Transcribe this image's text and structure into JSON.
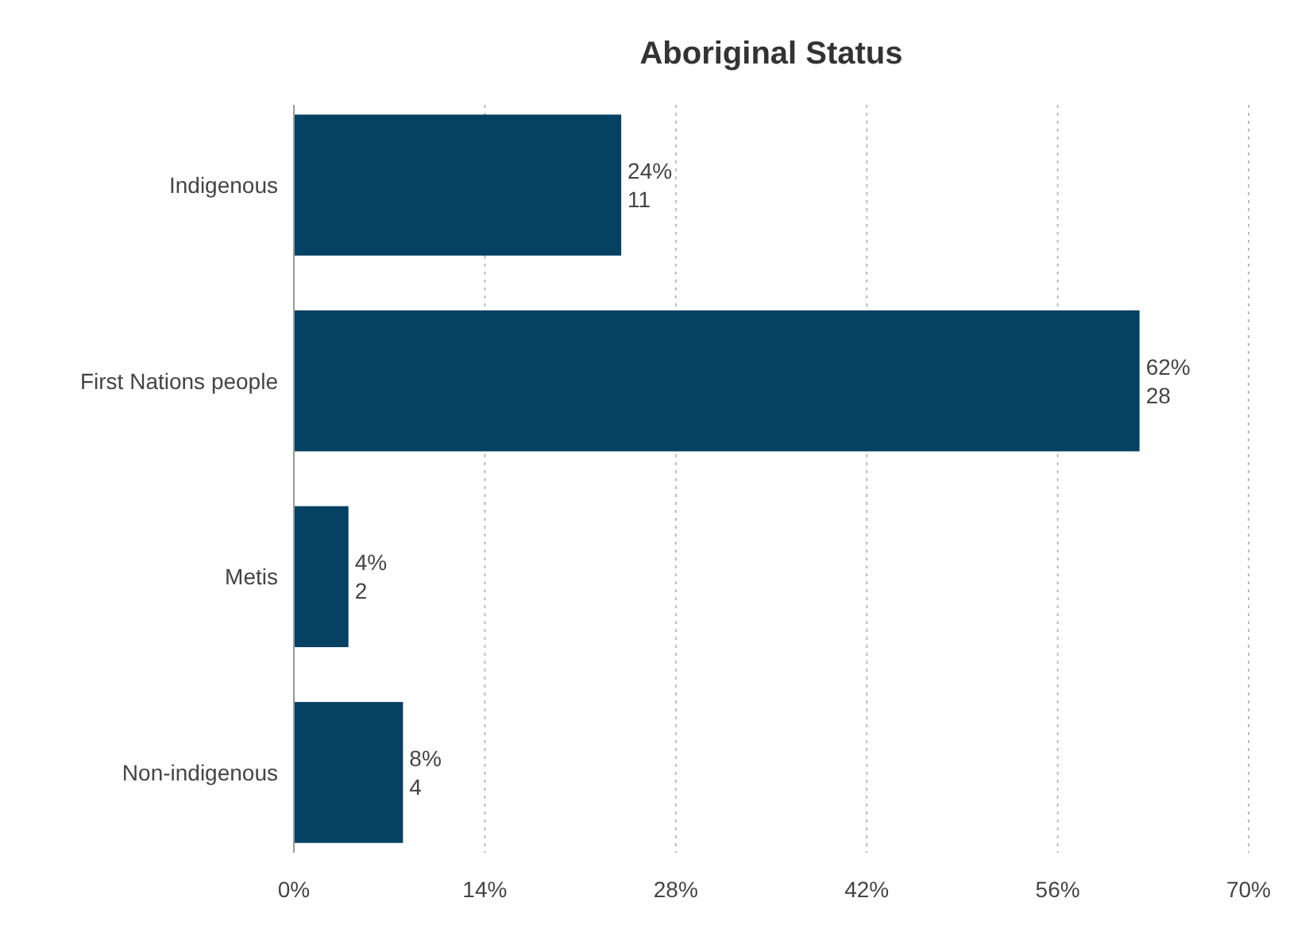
{
  "chart_data": {
    "type": "bar",
    "orientation": "horizontal",
    "title": "Aboriginal Status",
    "categories": [
      "Indigenous",
      "First Nations people",
      "Metis",
      "Non-indigenous"
    ],
    "values": [
      24,
      62,
      4,
      8
    ],
    "value_labels": [
      "24%\n11",
      "62%\n28",
      "4%\n2",
      "8%\n4"
    ],
    "color": "#054163",
    "xlim": [
      0,
      70
    ],
    "xticks": [
      {
        "value": 0,
        "label": "0%"
      },
      {
        "value": 14,
        "label": "14%"
      },
      {
        "value": 28,
        "label": "28%"
      },
      {
        "value": 42,
        "label": "42%"
      },
      {
        "value": 56,
        "label": "56%"
      },
      {
        "value": 70,
        "label": "70%"
      }
    ],
    "grid": "x"
  }
}
